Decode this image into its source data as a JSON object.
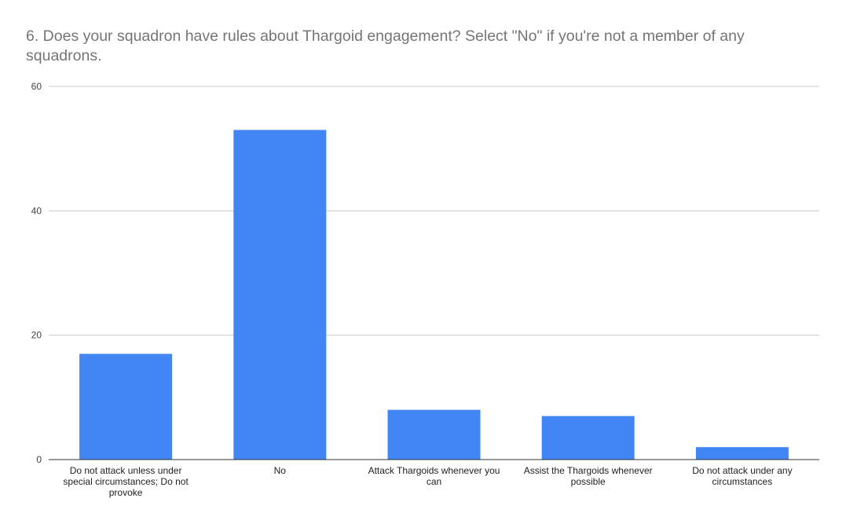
{
  "chart_data": {
    "type": "bar",
    "title": "6. Does your squadron have rules about Thargoid engagement? Select \"No\" if you're not a member of any squadrons.",
    "xlabel": "",
    "ylabel": "",
    "ylim": [
      0,
      60
    ],
    "yticks": [
      0,
      20,
      40,
      60
    ],
    "grid": true,
    "legend": "none",
    "bar_color": "#4285f4",
    "categories": [
      "Do not attack unless under special circumstances; Do not provoke",
      "No",
      "Attack Thargoids whenever you can",
      "Assist the Thargoids whenever possible",
      "Do not attack under any circumstances"
    ],
    "values": [
      17,
      53,
      8,
      7,
      2
    ]
  }
}
